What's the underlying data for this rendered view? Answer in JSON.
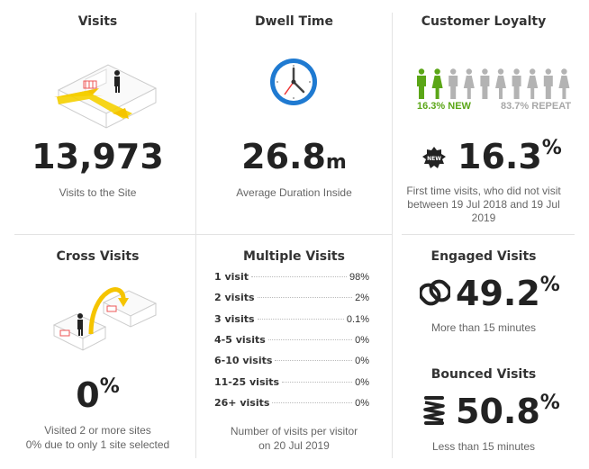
{
  "visits": {
    "title": "Visits",
    "value": "13,973",
    "caption": "Visits to the Site",
    "icon": "building-entry-icon"
  },
  "dwell": {
    "title": "Dwell Time",
    "value": "26.8",
    "unit": "m",
    "caption": "Average Duration Inside",
    "icon": "clock-icon"
  },
  "loyalty": {
    "title": "Customer Loyalty",
    "new_label": "16.3% NEW",
    "repeat_label": "83.7% REPEAT",
    "value": "16.3",
    "unit": "%",
    "badge": "NEW",
    "caption": "First time visits, who did not visit between 19 Jul 2018 and 19 Jul 2019",
    "new_color": "#5ba617",
    "repeat_color": "#b3b3b3",
    "new_people": 2,
    "repeat_people": 8
  },
  "cross": {
    "title": "Cross Visits",
    "value": "0",
    "unit": "%",
    "caption_line1": "Visited 2 or more sites",
    "caption_line2": "0% due to only 1 site selected",
    "icon": "cross-site-icon"
  },
  "multiple": {
    "title": "Multiple Visits",
    "rows": [
      {
        "label": "1 visit",
        "value": "98%"
      },
      {
        "label": "2 visits",
        "value": "2%"
      },
      {
        "label": "3 visits",
        "value": "0.1%"
      },
      {
        "label": "4-5 visits",
        "value": "0%"
      },
      {
        "label": "6-10 visits",
        "value": "0%"
      },
      {
        "label": "11-25 visits",
        "value": "0%"
      },
      {
        "label": "26+ visits",
        "value": "0%"
      }
    ],
    "caption_line1": "Number of visits per visitor",
    "caption_line2": "on 20 Jul 2019"
  },
  "engaged": {
    "title": "Engaged Visits",
    "value": "49.2",
    "unit": "%",
    "caption": "More than 15 minutes",
    "icon": "chain-link-icon"
  },
  "bounced": {
    "title": "Bounced Visits",
    "value": "50.8",
    "unit": "%",
    "caption": "Less than 15 minutes",
    "icon": "spring-icon"
  }
}
